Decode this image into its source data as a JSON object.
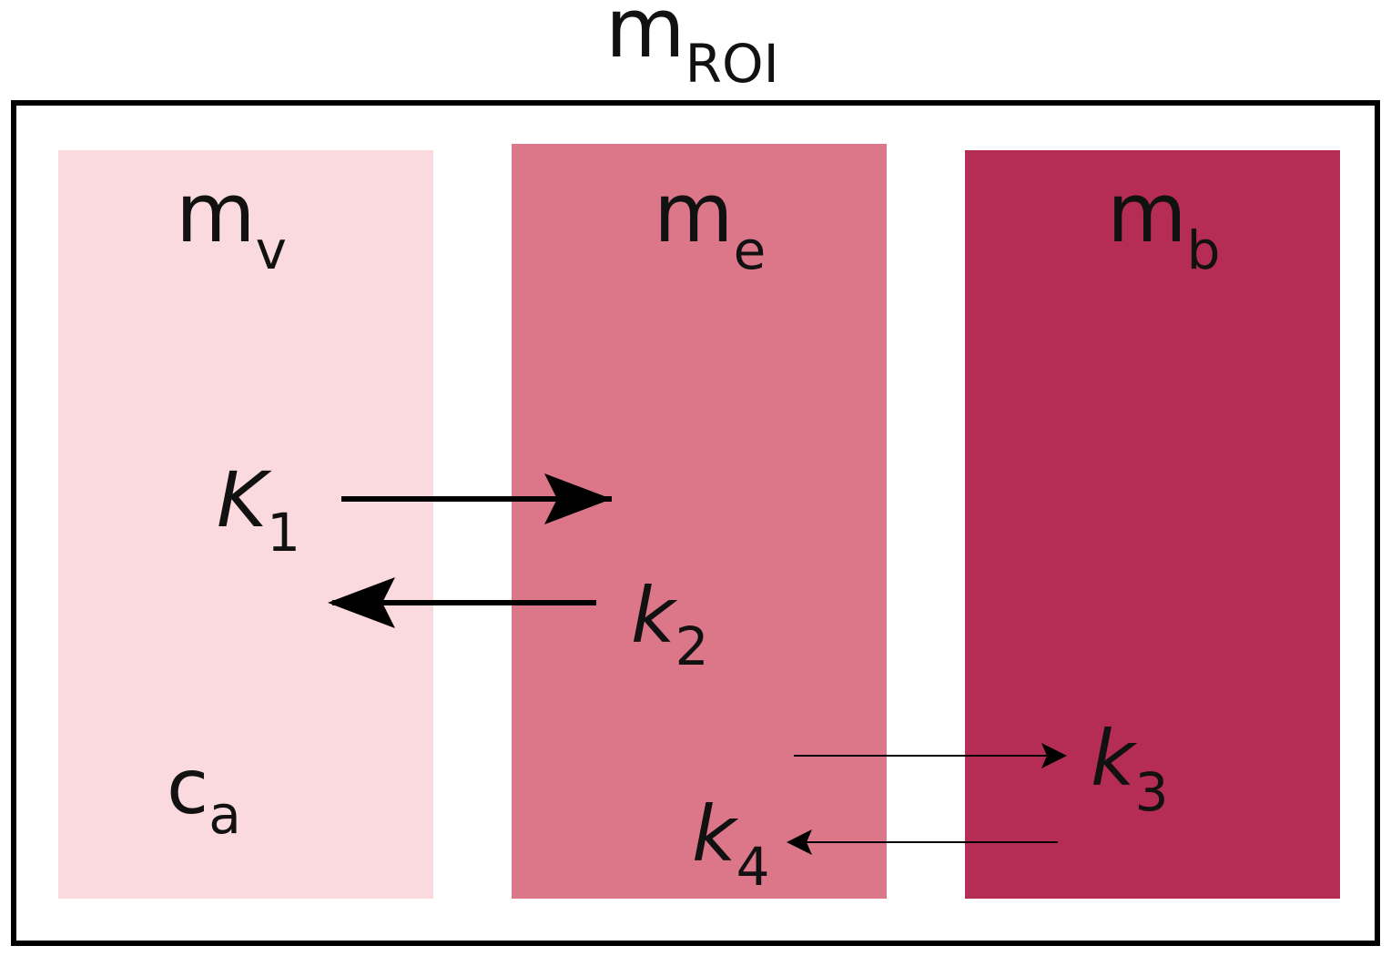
{
  "title": {
    "main": "m",
    "sub": "ROI"
  },
  "compartments": [
    {
      "label": {
        "main": "m",
        "sub": "v"
      }
    },
    {
      "label": {
        "main": "m",
        "sub": "e"
      }
    },
    {
      "label": {
        "main": "m",
        "sub": "b"
      }
    }
  ],
  "input": {
    "main": "c",
    "sub": "a"
  },
  "rates": [
    {
      "main": "K",
      "sub": "1"
    },
    {
      "main": "k",
      "sub": "2"
    },
    {
      "main": "k",
      "sub": "3"
    },
    {
      "main": "k",
      "sub": "4"
    }
  ]
}
